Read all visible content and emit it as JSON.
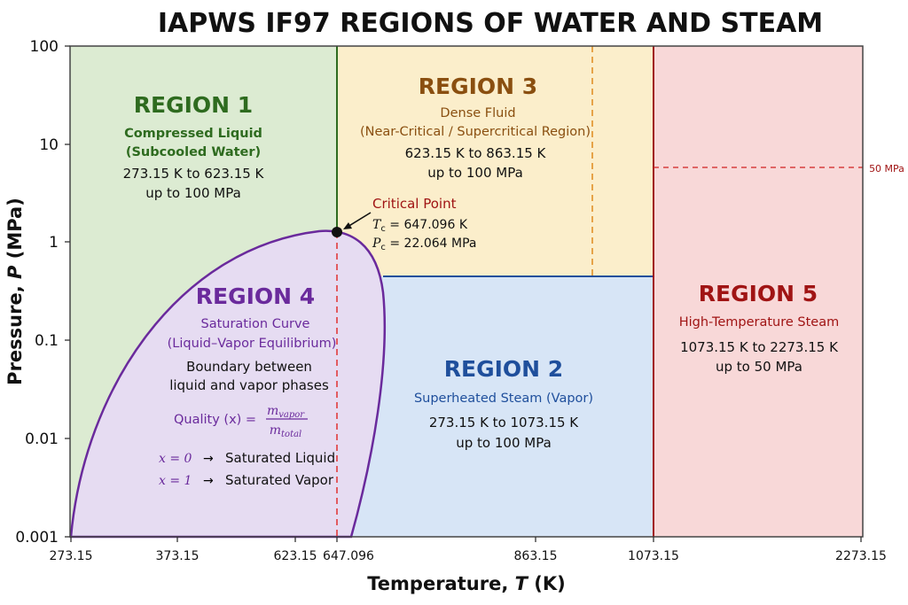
{
  "title": "IAPWS IF97 REGIONS OF WATER AND STEAM",
  "axes": {
    "xlabel_text": "Temperature, ",
    "xlabel_var": "T",
    "xlabel_unit": " (K)",
    "ylabel_text": "Pressure, ",
    "ylabel_var": "P",
    "ylabel_unit": " (MPa)",
    "x_ticks": [
      "273.15",
      "373.15",
      "623.15",
      "647.096",
      "863.15",
      "1073.15",
      "2273.15"
    ],
    "y_ticks": [
      "100",
      "10",
      "1",
      "0.1",
      "0.01",
      "0.001"
    ]
  },
  "colors": {
    "region1": "#dcebd2",
    "region2": "#d7e5f6",
    "region3": "#fbeecb",
    "region4": "#e6dcf2",
    "region5": "#f8d8d8",
    "green": "#2e6b1f",
    "blue": "#1f4f9c",
    "brown": "#8a4f10",
    "purple": "#6a2a9c",
    "red": "#a01414"
  },
  "regions": {
    "r1": {
      "title": "REGION 1",
      "sub1": "Compressed Liquid",
      "sub2": "(Subcooled Water)",
      "range": "273.15 K to 623.15 K",
      "limit": "up to 100 MPa"
    },
    "r2": {
      "title": "REGION 2",
      "sub1": "Superheated Steam (Vapor)",
      "range": "273.15 K to 1073.15 K",
      "limit": "up to 100 MPa"
    },
    "r3": {
      "title": "REGION 3",
      "sub1": "Dense Fluid",
      "sub2": "(Near-Critical / Supercritical Region)",
      "range": "623.15 K to 863.15 K",
      "limit": "up to 100 MPa"
    },
    "r4": {
      "title": "REGION 4",
      "sub1": "Saturation Curve",
      "sub2": "(Liquid–Vapor Equilibrium)",
      "body1": "Boundary between",
      "body2": "liquid and vapor phases",
      "quality_label": "Quality (x) = ",
      "quality_num": "m",
      "quality_num_sub": "vapor",
      "quality_den": "m",
      "quality_den_sub": "total",
      "x0": "x = 0",
      "x0_desc": "Saturated Liquid",
      "x1": "x = 1",
      "x1_desc": "Saturated Vapor",
      "arrow": "→"
    },
    "r5": {
      "title": "REGION 5",
      "sub1": "High-Temperature Steam",
      "range": "1073.15 K to 2273.15 K",
      "limit": "up to 50 MPa"
    }
  },
  "critical_point": {
    "title": "Critical Point",
    "tc_label": "T",
    "tc_sub": "c",
    "tc_value": " = 647.096 K",
    "pc_label": "P",
    "pc_sub": "c",
    "pc_value": " = 22.064 MPa"
  },
  "annotation_50mpa": "50 MPa"
}
